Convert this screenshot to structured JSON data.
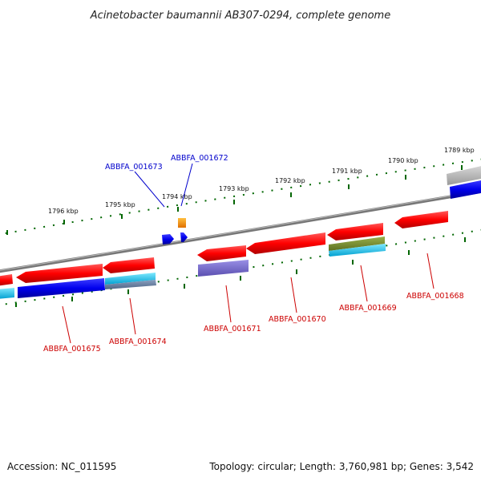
{
  "title": "Acinetobacter baumannii AB307-0294, complete genome",
  "footer": {
    "accession": "Accession: NC_011595",
    "summary": "Topology: circular; Length: 3,760,981 bp; Genes: 3,542"
  },
  "ticks": [
    "1796 kbp",
    "1795 kbp",
    "1794 kbp",
    "1793 kbp",
    "1792 kbp",
    "1791 kbp",
    "1790 kbp",
    "1789 kbp"
  ],
  "genes_top_strand": [
    "ABBFA_001673",
    "ABBFA_001672"
  ],
  "genes_bottom_strand": [
    "ABBFA_001675",
    "ABBFA_001674",
    "ABBFA_001671",
    "ABBFA_001670",
    "ABBFA_001669",
    "ABBFA_001668"
  ],
  "colors": {
    "cds": "#ff0000",
    "gene": "#0000ff",
    "backbone": "#888888",
    "tick": "#006600",
    "top_label": "#0000cc",
    "bottom_label": "#cc0000"
  }
}
